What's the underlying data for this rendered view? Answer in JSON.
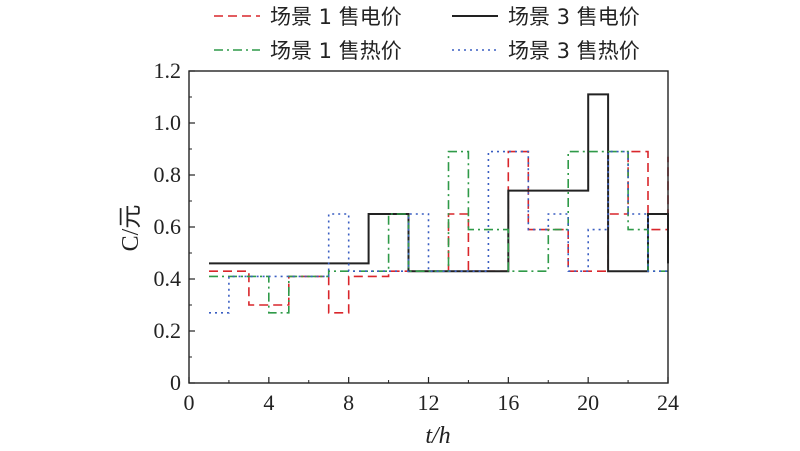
{
  "chart_data": {
    "type": "line",
    "step": true,
    "xlabel": "t/h",
    "ylabel": "C/元",
    "xlim": [
      0,
      24
    ],
    "ylim": [
      0,
      1.2
    ],
    "xticks": [
      "0",
      "4",
      "8",
      "12",
      "16",
      "20",
      "24"
    ],
    "yticks": [
      "0",
      "0.2",
      "0.4",
      "0.6",
      "0.8",
      "1.0",
      "1.2"
    ],
    "legend": "top",
    "x": [
      1,
      2,
      3,
      4,
      5,
      6,
      7,
      8,
      9,
      10,
      11,
      12,
      13,
      14,
      15,
      16,
      17,
      18,
      19,
      20,
      21,
      22,
      23,
      24
    ],
    "series": [
      {
        "name": "场景 1 售电价",
        "color": "#d9262b",
        "dash": "dashed",
        "values": [
          0.43,
          0.43,
          0.3,
          0.3,
          0.41,
          0.41,
          0.27,
          0.41,
          0.41,
          0.43,
          0.43,
          0.43,
          0.65,
          0.43,
          0.43,
          0.89,
          0.59,
          0.59,
          0.43,
          0.43,
          0.65,
          0.89,
          0.59,
          0.87
        ]
      },
      {
        "name": "场景 3 售电价",
        "color": "#222222",
        "dash": "solid",
        "values": [
          0.46,
          0.46,
          0.46,
          0.46,
          0.46,
          0.46,
          0.46,
          0.46,
          0.65,
          0.65,
          0.43,
          0.43,
          0.43,
          0.43,
          0.43,
          0.74,
          0.74,
          0.74,
          0.74,
          1.11,
          0.43,
          0.43,
          0.65,
          0.46
        ]
      },
      {
        "name": "场景 1 售热价",
        "color": "#2f9a48",
        "dash": "dashdot",
        "values": [
          0.41,
          0.41,
          0.41,
          0.27,
          0.41,
          0.41,
          0.43,
          0.43,
          0.43,
          0.65,
          0.43,
          0.43,
          0.89,
          0.59,
          0.59,
          0.43,
          0.43,
          0.59,
          0.89,
          0.89,
          0.89,
          0.59,
          0.43,
          0.43
        ]
      },
      {
        "name": "场景 3 售热价",
        "color": "#3a5ec2",
        "dash": "dotted",
        "values": [
          0.27,
          0.41,
          0.41,
          0.41,
          0.41,
          0.41,
          0.65,
          0.43,
          0.43,
          0.43,
          0.65,
          0.43,
          0.43,
          0.43,
          0.89,
          0.89,
          0.59,
          0.65,
          0.43,
          0.59,
          0.89,
          0.65,
          0.43,
          0.43
        ]
      }
    ]
  }
}
